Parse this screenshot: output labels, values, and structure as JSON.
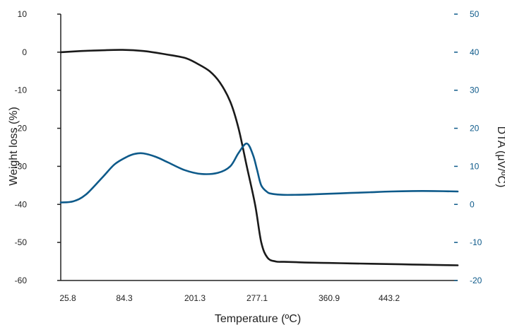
{
  "chart_data": {
    "type": "line",
    "title": "",
    "xlabel": "Temperature (ºC)",
    "ylabel_left": "Weight loss (%)",
    "ylabel_right": "DTA (μV/ºC)",
    "x_tick_labels": [
      "25.8",
      "84.3",
      "201.3",
      "277.1",
      "360.9",
      "443.2"
    ],
    "y_left_ticks": [
      10,
      0,
      -10,
      -20,
      -30,
      -40,
      -50,
      -60
    ],
    "y_right_ticks": [
      50,
      40,
      30,
      20,
      10,
      0,
      -10,
      -20
    ],
    "ylim_left": [
      -60,
      10
    ],
    "ylim_right": [
      -20,
      50
    ],
    "grid": false,
    "colors": {
      "weight_loss": "#1a1a1a",
      "dta": "#0e5a8a",
      "axis_left": "#222222",
      "axis_right": "#0e5a8a"
    },
    "series": [
      {
        "axis": "left",
        "x": [
          0,
          0.5,
          1.0,
          1.5,
          2.0,
          2.5,
          3.0,
          3.3,
          3.6,
          3.85,
          4.1,
          4.3,
          4.5,
          4.7,
          4.85,
          5.0,
          5.2,
          5.4,
          5.7,
          6.0,
          6.5,
          7.0,
          7.5,
          8.0,
          8.5,
          9.0,
          9.6
        ],
        "values": [
          0.0,
          0.3,
          0.5,
          0.6,
          0.3,
          -0.5,
          -1.5,
          -3.0,
          -5.0,
          -8.0,
          -13.0,
          -20.0,
          -30.0,
          -40.0,
          -50.0,
          -54.0,
          -55.0,
          -55.1,
          -55.2,
          -55.3,
          -55.4,
          -55.5,
          -55.6,
          -55.7,
          -55.8,
          -55.9,
          -56.0
        ]
      },
      {
        "axis": "right",
        "x": [
          0,
          0.3,
          0.6,
          1.0,
          1.3,
          1.6,
          1.8,
          2.0,
          2.3,
          2.6,
          3.0,
          3.4,
          3.8,
          4.1,
          4.3,
          4.5,
          4.65,
          4.75,
          4.85,
          5.0,
          5.1,
          5.25,
          5.4,
          5.6,
          6.0,
          6.5,
          7.0,
          7.5,
          8.0,
          8.5,
          9.0,
          9.6
        ],
        "values": [
          0.5,
          0.8,
          2.5,
          7.0,
          10.5,
          12.5,
          13.3,
          13.4,
          12.5,
          11.0,
          9.0,
          8.0,
          8.3,
          10.0,
          13.5,
          16.0,
          13.0,
          9.0,
          5.0,
          3.2,
          2.8,
          2.6,
          2.5,
          2.5,
          2.6,
          2.8,
          3.0,
          3.2,
          3.4,
          3.5,
          3.5,
          3.4
        ]
      }
    ]
  }
}
